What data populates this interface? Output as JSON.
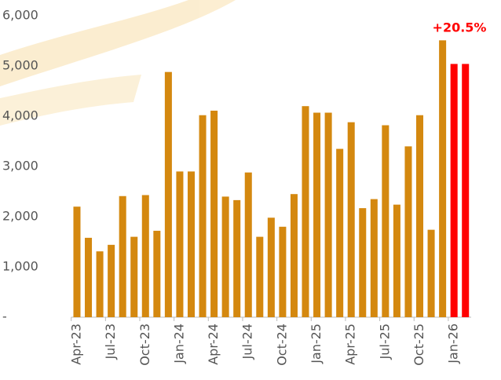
{
  "chart_data": {
    "type": "bar",
    "annotation": "+20.5%",
    "categories": [
      "Apr-23",
      null,
      null,
      "Jul-23",
      null,
      null,
      "Oct-23",
      null,
      null,
      "Jan-24",
      null,
      null,
      "Apr-24",
      null,
      null,
      "Jul-24",
      null,
      null,
      "Oct-24",
      null,
      null,
      "Jan-25",
      null,
      null,
      "Apr-25",
      null,
      null,
      "Jul-25",
      null,
      null,
      "Oct-25",
      null,
      null,
      "Jan-26",
      null
    ],
    "values": [
      2200,
      1580,
      1310,
      1440,
      2410,
      1600,
      2430,
      1720,
      4880,
      2900,
      2900,
      4020,
      4110,
      2400,
      2330,
      2880,
      1600,
      1980,
      1800,
      2450,
      4200,
      4070,
      4070,
      3350,
      3880,
      2170,
      2350,
      3820,
      2240,
      3400,
      4020,
      1740,
      5510,
      5040,
      5040
    ],
    "colors": [
      "#d4880f",
      "#d4880f",
      "#d4880f",
      "#d4880f",
      "#d4880f",
      "#d4880f",
      "#d4880f",
      "#d4880f",
      "#d4880f",
      "#d4880f",
      "#d4880f",
      "#d4880f",
      "#d4880f",
      "#d4880f",
      "#d4880f",
      "#d4880f",
      "#d4880f",
      "#d4880f",
      "#d4880f",
      "#d4880f",
      "#d4880f",
      "#d4880f",
      "#d4880f",
      "#d4880f",
      "#d4880f",
      "#d4880f",
      "#d4880f",
      "#d4880f",
      "#d4880f",
      "#d4880f",
      "#d4880f",
      "#d4880f",
      "#d4880f",
      "#ff0000",
      "#ff0000"
    ],
    "ylim": [
      0,
      6000
    ],
    "yticks": [
      {
        "value": 0,
        "label": "-"
      },
      {
        "value": 1000,
        "label": "1,000"
      },
      {
        "value": 2000,
        "label": "2,000"
      },
      {
        "value": 3000,
        "label": "3,000"
      },
      {
        "value": 4000,
        "label": "4,000"
      },
      {
        "value": 5000,
        "label": "5,000"
      },
      {
        "value": 6000,
        "label": "6,000"
      }
    ],
    "grid": false
  }
}
